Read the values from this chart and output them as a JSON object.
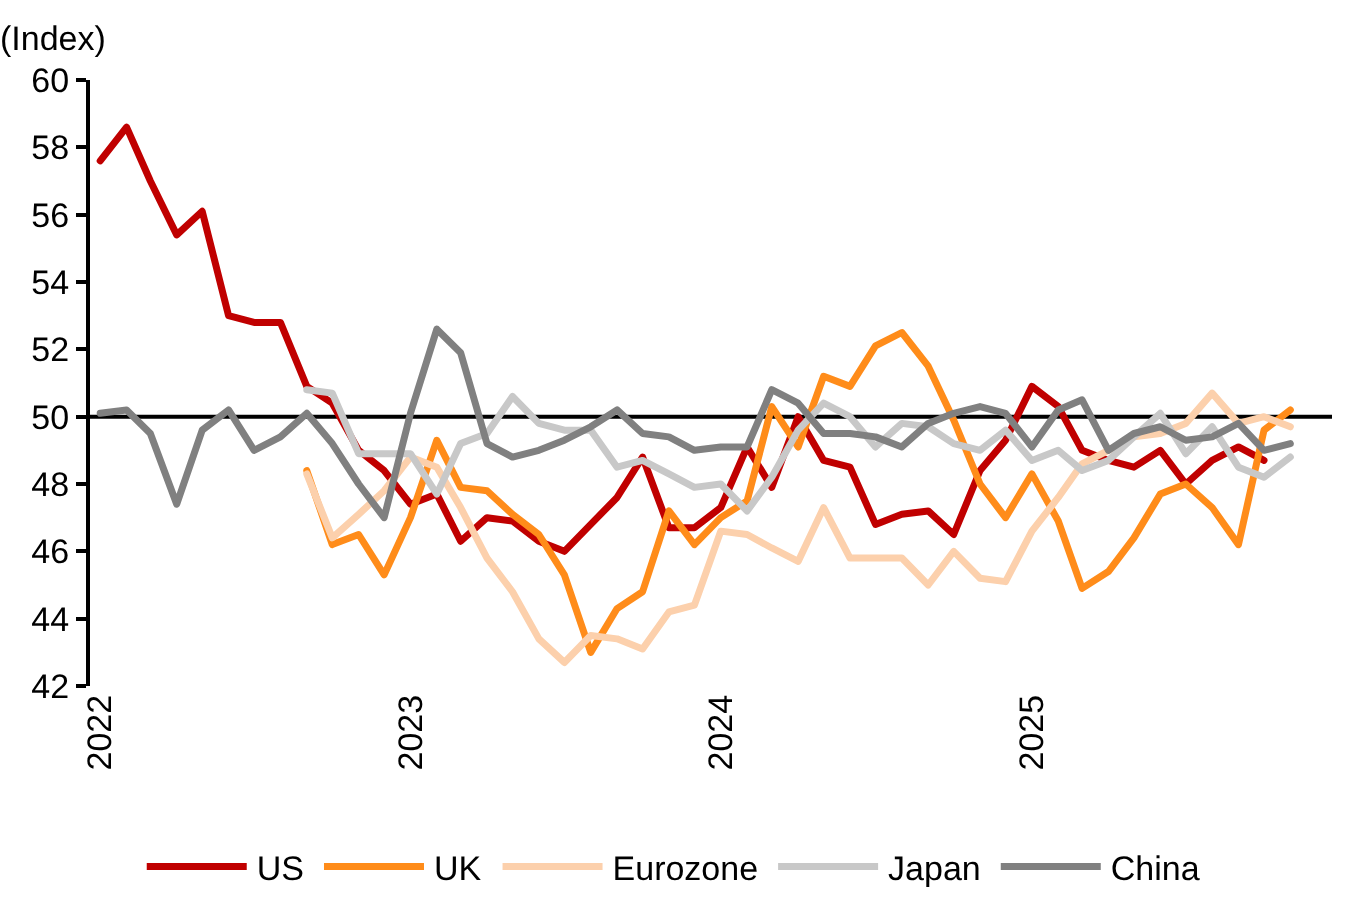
{
  "chart_data": {
    "type": "line",
    "ylabel": "(Index)",
    "ylim": [
      42,
      60
    ],
    "yticks": [
      42,
      44,
      46,
      48,
      50,
      52,
      54,
      56,
      58,
      60
    ],
    "xlim": [
      "2021-12-20",
      "2025-12-20"
    ],
    "xticks": [
      {
        "value": "2022-01-01",
        "label": "2022"
      },
      {
        "value": "2023-01-01",
        "label": "2023"
      },
      {
        "value": "2024-01-01",
        "label": "2024"
      },
      {
        "value": "2025-01-01",
        "label": "2025"
      }
    ],
    "grid": false,
    "legend": "bottom",
    "marker": "none",
    "line_style": "solid",
    "ref_lines": [
      {
        "axis": "y",
        "value": 50,
        "color": "#000000"
      }
    ],
    "x": [
      "2022-01",
      "2022-02",
      "2022-03",
      "2022-04",
      "2022-05",
      "2022-06",
      "2022-07",
      "2022-08",
      "2022-09",
      "2022-10",
      "2022-11",
      "2022-12",
      "2023-01",
      "2023-02",
      "2023-03",
      "2023-04",
      "2023-05",
      "2023-06",
      "2023-07",
      "2023-08",
      "2023-09",
      "2023-10",
      "2023-11",
      "2023-12",
      "2024-01",
      "2024-02",
      "2024-03",
      "2024-04",
      "2024-05",
      "2024-06",
      "2024-07",
      "2024-08",
      "2024-09",
      "2024-10",
      "2024-11",
      "2024-12",
      "2025-01",
      "2025-02",
      "2025-03",
      "2025-04",
      "2025-05",
      "2025-06",
      "2025-07",
      "2025-08",
      "2025-09",
      "2025-10",
      "2025-11"
    ],
    "series": [
      {
        "name": "US",
        "color": "#c00000",
        "values": [
          57.6,
          58.6,
          57.0,
          55.4,
          56.1,
          53.0,
          52.8,
          52.8,
          50.9,
          50.4,
          49.0,
          48.4,
          47.4,
          47.7,
          46.3,
          47.0,
          46.9,
          46.3,
          46.0,
          46.8,
          47.6,
          48.8,
          46.7,
          46.7,
          47.3,
          49.1,
          47.9,
          50.0,
          48.7,
          48.5,
          46.8,
          47.1,
          47.2,
          46.5,
          48.4,
          49.3,
          50.9,
          50.3,
          49.0,
          48.7,
          48.5,
          49.0,
          48.0,
          48.7,
          49.1,
          48.7,
          null
        ]
      },
      {
        "name": "UK",
        "color": "#ff8c1a",
        "values": [
          null,
          null,
          null,
          null,
          null,
          null,
          null,
          null,
          48.4,
          46.2,
          46.5,
          45.3,
          47.0,
          49.3,
          47.9,
          47.8,
          47.1,
          46.5,
          45.3,
          43.0,
          44.3,
          44.8,
          47.2,
          46.2,
          47.0,
          47.5,
          50.3,
          49.1,
          51.2,
          50.9,
          52.1,
          52.5,
          51.5,
          49.9,
          48.0,
          47.0,
          48.3,
          46.9,
          44.9,
          45.4,
          46.4,
          47.7,
          48.0,
          47.3,
          46.2,
          49.6,
          50.2
        ]
      },
      {
        "name": "Eurozone",
        "color": "#fcd0ac",
        "values": [
          null,
          null,
          null,
          null,
          null,
          null,
          null,
          null,
          48.3,
          46.4,
          47.1,
          47.8,
          48.8,
          48.5,
          47.3,
          45.8,
          44.8,
          43.4,
          42.7,
          43.5,
          43.4,
          43.1,
          44.2,
          44.4,
          46.6,
          46.5,
          46.1,
          45.7,
          47.3,
          45.8,
          45.8,
          45.8,
          45.0,
          46.0,
          45.2,
          45.1,
          46.6,
          47.6,
          48.6,
          49.0,
          49.4,
          49.5,
          49.8,
          50.7,
          49.8,
          50.0,
          49.7
        ]
      },
      {
        "name": "Japan",
        "color": "#c8c8c8",
        "values": [
          null,
          null,
          null,
          null,
          null,
          null,
          null,
          null,
          50.8,
          50.7,
          48.9,
          48.9,
          48.9,
          47.7,
          49.2,
          49.5,
          50.6,
          49.8,
          49.6,
          49.6,
          48.5,
          48.7,
          48.3,
          47.9,
          48.0,
          47.2,
          48.2,
          49.6,
          50.4,
          50.0,
          49.1,
          49.8,
          49.7,
          49.2,
          49.0,
          49.6,
          48.7,
          49.0,
          48.4,
          48.7,
          49.4,
          50.1,
          48.9,
          49.7,
          48.5,
          48.2,
          48.8
        ]
      },
      {
        "name": "China",
        "color": "#808080",
        "values": [
          50.1,
          50.2,
          49.5,
          47.4,
          49.6,
          50.2,
          49.0,
          49.4,
          50.1,
          49.2,
          48.0,
          47.0,
          50.1,
          52.6,
          51.9,
          49.2,
          48.8,
          49.0,
          49.3,
          49.7,
          50.2,
          49.5,
          49.4,
          49.0,
          49.1,
          49.1,
          50.8,
          50.4,
          49.5,
          49.5,
          49.4,
          49.1,
          49.8,
          50.1,
          50.3,
          50.1,
          49.1,
          50.2,
          50.5,
          49.0,
          49.5,
          49.7,
          49.3,
          49.4,
          49.8,
          49.0,
          49.2
        ]
      }
    ]
  }
}
